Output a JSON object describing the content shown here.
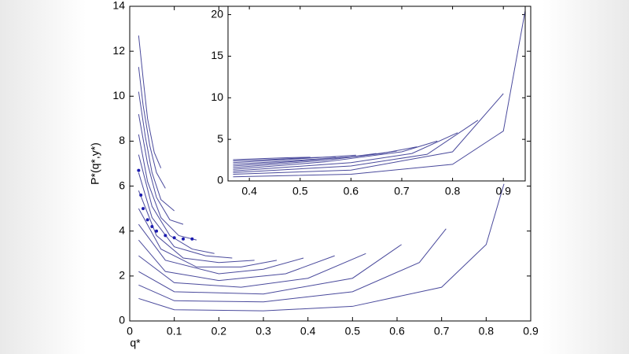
{
  "chart_data": [
    {
      "type": "line",
      "xlabel": "q*",
      "ylabel": "P*(q*,y*)",
      "xlim": [
        0,
        0.9
      ],
      "xticks": [
        0,
        0.1,
        0.2,
        0.3,
        0.4,
        0.5,
        0.6,
        0.7,
        0.8,
        0.9
      ],
      "ylim": [
        0,
        14
      ],
      "yticks": [
        0,
        2,
        4,
        6,
        8,
        10,
        12,
        14
      ],
      "color": "#4a4a9c",
      "series": [
        {
          "x": [
            0.02,
            0.1,
            0.3,
            0.5,
            0.7,
            0.8,
            0.84
          ],
          "values": [
            1.0,
            0.5,
            0.45,
            0.65,
            1.5,
            3.4,
            6.1
          ]
        },
        {
          "x": [
            0.02,
            0.1,
            0.3,
            0.5,
            0.65,
            0.71
          ],
          "values": [
            1.6,
            0.9,
            0.85,
            1.3,
            2.6,
            4.1
          ]
        },
        {
          "x": [
            0.02,
            0.1,
            0.3,
            0.5,
            0.61
          ],
          "values": [
            2.2,
            1.3,
            1.2,
            1.9,
            3.4
          ]
        },
        {
          "x": [
            0.02,
            0.1,
            0.25,
            0.4,
            0.53
          ],
          "values": [
            2.9,
            1.7,
            1.5,
            1.9,
            3.0
          ]
        },
        {
          "x": [
            0.02,
            0.08,
            0.2,
            0.35,
            0.46
          ],
          "values": [
            3.6,
            2.2,
            1.8,
            2.1,
            2.9
          ]
        },
        {
          "x": [
            0.02,
            0.08,
            0.2,
            0.3,
            0.39
          ],
          "values": [
            4.3,
            2.7,
            2.1,
            2.3,
            2.8
          ]
        },
        {
          "x": [
            0.02,
            0.07,
            0.15,
            0.25,
            0.33
          ],
          "values": [
            5.0,
            3.2,
            2.4,
            2.4,
            2.7
          ]
        },
        {
          "x": [
            0.02,
            0.06,
            0.12,
            0.2,
            0.28
          ],
          "values": [
            5.8,
            3.8,
            2.8,
            2.6,
            2.7
          ]
        },
        {
          "x": [
            0.02,
            0.05,
            0.1,
            0.17,
            0.23
          ],
          "values": [
            6.6,
            4.6,
            3.3,
            2.9,
            2.8
          ]
        },
        {
          "x": [
            0.02,
            0.05,
            0.09,
            0.14,
            0.19
          ],
          "values": [
            7.4,
            5.1,
            3.8,
            3.2,
            3.0
          ]
        },
        {
          "x": [
            0.02,
            0.04,
            0.07,
            0.11,
            0.15
          ],
          "values": [
            8.3,
            6.2,
            4.6,
            3.8,
            3.6
          ]
        },
        {
          "x": [
            0.02,
            0.04,
            0.06,
            0.09,
            0.12
          ],
          "values": [
            9.2,
            7.0,
            5.5,
            4.5,
            4.3
          ]
        },
        {
          "x": [
            0.02,
            0.035,
            0.05,
            0.07,
            0.1
          ],
          "values": [
            10.2,
            8.2,
            6.6,
            5.4,
            4.9
          ]
        },
        {
          "x": [
            0.02,
            0.03,
            0.045,
            0.06,
            0.08
          ],
          "values": [
            11.3,
            9.6,
            7.8,
            6.6,
            5.9
          ]
        },
        {
          "x": [
            0.02,
            0.03,
            0.04,
            0.055,
            0.07
          ],
          "values": [
            12.7,
            10.8,
            9.0,
            7.5,
            6.8
          ]
        },
        {
          "x": [
            0.02,
            0.025,
            0.03,
            0.04,
            0.05,
            0.06,
            0.08,
            0.1,
            0.12,
            0.14
          ],
          "values": [
            6.7,
            5.6,
            5.0,
            4.5,
            4.2,
            4.0,
            3.8,
            3.7,
            3.65,
            3.65
          ],
          "color": "#1a1ab0",
          "marker": "dot"
        }
      ]
    },
    {
      "type": "line",
      "xlim": [
        0.358,
        0.943
      ],
      "xticks": [
        0.4,
        0.5,
        0.6,
        0.7,
        0.8,
        0.9
      ],
      "ylim": [
        0,
        21
      ],
      "yticks": [
        0,
        5,
        10,
        15,
        20
      ],
      "color": "#4a4a9c",
      "series": [
        {
          "x": [
            0.368,
            0.6,
            0.8,
            0.9,
            0.943
          ],
          "values": [
            0.5,
            0.8,
            2.0,
            6.0,
            20.5
          ]
        },
        {
          "x": [
            0.368,
            0.6,
            0.8,
            0.9
          ],
          "values": [
            0.8,
            1.3,
            3.5,
            10.5
          ]
        },
        {
          "x": [
            0.368,
            0.6,
            0.75,
            0.85
          ],
          "values": [
            1.0,
            1.8,
            3.2,
            7.3
          ]
        },
        {
          "x": [
            0.368,
            0.6,
            0.72,
            0.81
          ],
          "values": [
            1.2,
            2.2,
            3.3,
            5.8
          ]
        },
        {
          "x": [
            0.368,
            0.55,
            0.7,
            0.77
          ],
          "values": [
            1.4,
            2.3,
            3.5,
            4.8
          ]
        },
        {
          "x": [
            0.368,
            0.55,
            0.66,
            0.73
          ],
          "values": [
            1.6,
            2.5,
            3.3,
            4.1
          ]
        },
        {
          "x": [
            0.368,
            0.5,
            0.62,
            0.69
          ],
          "values": [
            1.8,
            2.4,
            3.0,
            3.6
          ]
        },
        {
          "x": [
            0.368,
            0.5,
            0.6,
            0.65
          ],
          "values": [
            2.0,
            2.5,
            2.9,
            3.3
          ]
        },
        {
          "x": [
            0.368,
            0.48,
            0.56,
            0.61
          ],
          "values": [
            2.2,
            2.6,
            2.9,
            3.1
          ]
        },
        {
          "x": [
            0.368,
            0.45,
            0.52,
            0.57
          ],
          "values": [
            2.4,
            2.6,
            2.8,
            2.9
          ]
        },
        {
          "x": [
            0.368,
            0.43,
            0.48,
            0.52
          ],
          "values": [
            2.55,
            2.7,
            2.8,
            2.85
          ]
        }
      ]
    }
  ]
}
